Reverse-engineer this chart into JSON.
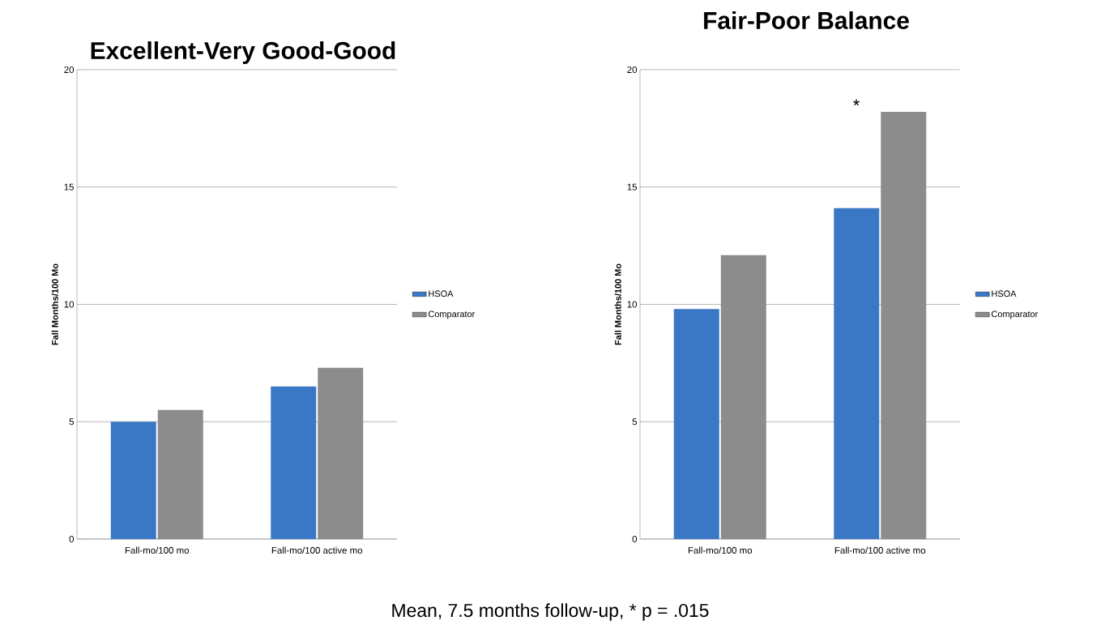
{
  "chart_data": [
    {
      "type": "bar",
      "title": "Excellent-Very Good-Good",
      "ylabel": "Fall Months/100 Mo",
      "categories": [
        "Fall-mo/100 mo",
        "Fall-mo/100 active mo"
      ],
      "series": [
        {
          "name": "HSOA",
          "color": "#3a78c6",
          "values": [
            5.0,
            6.5
          ]
        },
        {
          "name": "Comparator",
          "color": "#8c8c8c",
          "values": [
            5.5,
            7.3
          ]
        }
      ],
      "ylim": [
        0,
        20
      ],
      "yticks": [
        0,
        5,
        10,
        15,
        20
      ],
      "grid": "y",
      "legend": "right",
      "annotations": [
        "Mean, 7.5 months follow-up, * p = .015"
      ]
    },
    {
      "type": "bar",
      "title": "Fair-Poor Balance",
      "ylabel": "Fall Months/100 Mo",
      "categories": [
        "Fall-mo/100 mo",
        "Fall-mo/100 active mo"
      ],
      "series": [
        {
          "name": "HSOA",
          "color": "#3a78c6",
          "values": [
            9.8,
            14.1
          ]
        },
        {
          "name": "Comparator",
          "color": "#8c8c8c",
          "values": [
            12.1,
            18.2
          ]
        }
      ],
      "ylim": [
        0,
        20
      ],
      "yticks": [
        0,
        5,
        10,
        15,
        20
      ],
      "grid": "y",
      "legend": "right",
      "annotations": [
        "*"
      ]
    }
  ]
}
